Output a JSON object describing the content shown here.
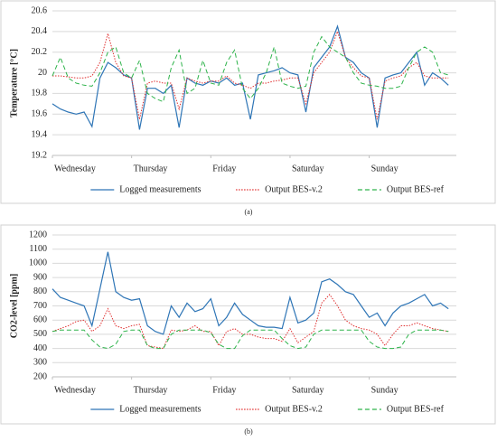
{
  "chart_data": [
    {
      "type": "line",
      "ylabel": "Temperature [°C]",
      "caption": "(a)",
      "legend": "bottom",
      "grid": true,
      "xlim": [
        0,
        5.1
      ],
      "xticks": [
        {
          "value": 0,
          "label": "Wednesday"
        },
        {
          "value": 1,
          "label": "Thursday"
        },
        {
          "value": 2,
          "label": "Friday"
        },
        {
          "value": 3,
          "label": "Saturday"
        },
        {
          "value": 4,
          "label": "Sunday"
        }
      ],
      "ylim": [
        19.2,
        20.6
      ],
      "yticks": [
        19.2,
        19.4,
        19.6,
        19.8,
        20,
        20.2,
        20.4,
        20.6
      ],
      "x": [
        0,
        0.1,
        0.2,
        0.3,
        0.4,
        0.5,
        0.6,
        0.7,
        0.8,
        0.9,
        1,
        1.1,
        1.2,
        1.3,
        1.4,
        1.5,
        1.6,
        1.7,
        1.8,
        1.9,
        2,
        2.1,
        2.2,
        2.3,
        2.4,
        2.5,
        2.6,
        2.7,
        2.8,
        2.9,
        3,
        3.1,
        3.2,
        3.3,
        3.4,
        3.5,
        3.6,
        3.7,
        3.8,
        3.9,
        4,
        4.1,
        4.2,
        4.3,
        4.4,
        4.5,
        4.6,
        4.7,
        4.8,
        4.9,
        5
      ],
      "series": [
        {
          "name": "Logged measurements",
          "color": "#2e75b6",
          "style": "solid",
          "values": [
            19.7,
            19.65,
            19.62,
            19.6,
            19.62,
            19.48,
            19.95,
            20.1,
            20.05,
            19.98,
            19.95,
            19.45,
            19.85,
            19.85,
            19.8,
            19.88,
            19.47,
            19.95,
            19.9,
            19.88,
            19.92,
            19.9,
            19.95,
            19.88,
            19.9,
            19.55,
            19.98,
            20.0,
            20.02,
            20.05,
            20.0,
            19.98,
            19.62,
            20.05,
            20.15,
            20.25,
            20.45,
            20.15,
            20.1,
            20.0,
            19.95,
            19.47,
            19.95,
            19.98,
            20.0,
            20.1,
            20.2,
            19.88,
            20.0,
            19.95,
            19.88
          ]
        },
        {
          "name": "Output BES-v.2",
          "color": "#e03030",
          "style": "dotted",
          "values": [
            19.97,
            19.97,
            19.96,
            19.95,
            19.95,
            19.97,
            20.1,
            20.38,
            20.1,
            19.97,
            19.95,
            19.55,
            19.9,
            19.92,
            19.9,
            19.9,
            19.65,
            19.95,
            19.92,
            19.9,
            19.92,
            19.92,
            19.97,
            19.9,
            19.88,
            19.85,
            19.9,
            19.9,
            19.92,
            19.93,
            19.95,
            19.95,
            19.7,
            20.0,
            20.1,
            20.2,
            20.4,
            20.15,
            20.05,
            19.97,
            19.95,
            19.55,
            19.92,
            19.95,
            19.97,
            20.05,
            20.1,
            19.97,
            19.95,
            19.95,
            19.95
          ]
        },
        {
          "name": "Output BES-ref",
          "color": "#2db34a",
          "style": "dashed",
          "values": [
            19.97,
            20.15,
            19.95,
            19.9,
            19.88,
            19.87,
            20.0,
            20.2,
            20.25,
            20.0,
            19.95,
            20.12,
            19.8,
            19.75,
            19.72,
            20.05,
            20.22,
            19.8,
            19.85,
            20.12,
            19.9,
            19.88,
            20.1,
            20.22,
            19.85,
            19.75,
            19.85,
            20.0,
            20.25,
            19.9,
            19.87,
            19.85,
            19.87,
            20.2,
            20.35,
            20.25,
            20.2,
            20.15,
            20.0,
            19.9,
            19.88,
            19.87,
            19.85,
            19.85,
            19.87,
            20.05,
            20.2,
            20.25,
            20.2,
            20.0,
            19.98
          ]
        }
      ]
    },
    {
      "type": "line",
      "ylabel": "CO2-level [ppm]",
      "caption": "(b)",
      "legend": "bottom",
      "grid": true,
      "xlim": [
        0,
        5.1
      ],
      "xticks": [
        {
          "value": 0,
          "label": "Wednesday"
        },
        {
          "value": 1,
          "label": "Thursday"
        },
        {
          "value": 2,
          "label": "Friday"
        },
        {
          "value": 3,
          "label": "Saturday"
        },
        {
          "value": 4,
          "label": "Sunday"
        }
      ],
      "ylim": [
        200,
        1200
      ],
      "yticks": [
        200,
        300,
        400,
        500,
        600,
        700,
        800,
        900,
        1000,
        1100,
        1200
      ],
      "x": [
        0,
        0.1,
        0.2,
        0.3,
        0.4,
        0.5,
        0.6,
        0.7,
        0.8,
        0.9,
        1,
        1.1,
        1.2,
        1.3,
        1.4,
        1.5,
        1.6,
        1.7,
        1.8,
        1.9,
        2,
        2.1,
        2.2,
        2.3,
        2.4,
        2.5,
        2.6,
        2.7,
        2.8,
        2.9,
        3,
        3.1,
        3.2,
        3.3,
        3.4,
        3.5,
        3.6,
        3.7,
        3.8,
        3.9,
        4,
        4.1,
        4.2,
        4.3,
        4.4,
        4.5,
        4.6,
        4.7,
        4.8,
        4.9,
        5
      ],
      "series": [
        {
          "name": "Logged measurements",
          "color": "#2e75b6",
          "style": "solid",
          "values": [
            820,
            760,
            740,
            720,
            700,
            560,
            820,
            1080,
            800,
            760,
            740,
            750,
            560,
            520,
            500,
            700,
            620,
            720,
            660,
            680,
            750,
            560,
            620,
            720,
            640,
            600,
            560,
            550,
            550,
            540,
            760,
            580,
            600,
            650,
            870,
            890,
            850,
            800,
            780,
            700,
            620,
            650,
            560,
            650,
            700,
            720,
            750,
            780,
            700,
            720,
            680
          ]
        },
        {
          "name": "Output BES-v.2",
          "color": "#e03030",
          "style": "dotted",
          "values": [
            520,
            540,
            560,
            590,
            600,
            520,
            560,
            680,
            560,
            540,
            560,
            570,
            420,
            410,
            400,
            530,
            520,
            530,
            560,
            520,
            520,
            420,
            520,
            540,
            500,
            500,
            480,
            470,
            470,
            450,
            540,
            440,
            480,
            520,
            720,
            780,
            700,
            600,
            560,
            540,
            530,
            500,
            420,
            500,
            560,
            560,
            580,
            560,
            540,
            530,
            520
          ]
        },
        {
          "name": "Output BES-ref",
          "color": "#2db34a",
          "style": "dashed",
          "values": [
            520,
            530,
            530,
            530,
            530,
            460,
            410,
            400,
            430,
            520,
            530,
            530,
            420,
            400,
            400,
            500,
            530,
            530,
            530,
            530,
            510,
            430,
            400,
            400,
            490,
            530,
            530,
            530,
            530,
            470,
            420,
            400,
            410,
            500,
            530,
            530,
            530,
            530,
            530,
            530,
            450,
            410,
            400,
            400,
            410,
            500,
            530,
            530,
            530,
            530,
            520
          ]
        }
      ]
    }
  ]
}
